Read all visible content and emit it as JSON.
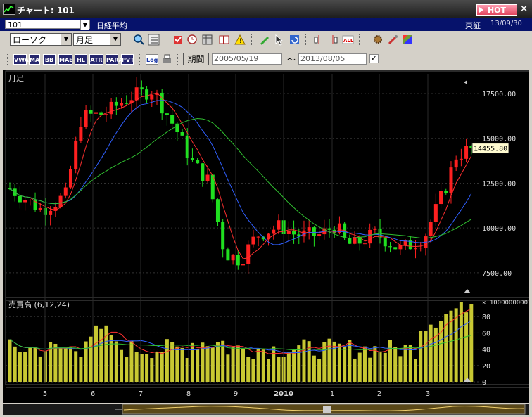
{
  "window": {
    "title": "チャート: 101",
    "hot_label": "HOT",
    "close_symbol": "✕"
  },
  "symbol_bar": {
    "code": "101",
    "name": "日経平均",
    "exchange": "東証",
    "date": "13/09/30"
  },
  "toolbar1": {
    "chart_type": "ローソク",
    "period": "月足"
  },
  "toolbar2": {
    "indicators": [
      "VWAP",
      "MA",
      "BB",
      "MAE",
      "HL",
      "ATR",
      "PARA",
      "PVT"
    ],
    "log_label": "Log",
    "period_button": "期間",
    "date_from": "2005/05/19",
    "date_to": "2013/08/05",
    "tilde": "〜",
    "check": "✓"
  },
  "chart_data": {
    "type": "candlestick",
    "price_panel": {
      "label": "月足",
      "y_ticks": [
        "17500.00",
        "15000.00",
        "12500.00",
        "10000.00",
        "7500.00"
      ],
      "last_price": "14455.80",
      "ylim": [
        6200,
        18600
      ]
    },
    "volume_panel": {
      "label": "売買高 (6,12,24)",
      "unit": "× 1000000000",
      "y_ticks": [
        "80",
        "60",
        "40",
        "20",
        "0"
      ],
      "ylim": [
        0,
        100
      ]
    },
    "x_ticks": [
      "5",
      "6",
      "7",
      "8",
      "9",
      "2010",
      "1",
      "2",
      "3"
    ],
    "colors": {
      "up": "#ff2020",
      "down": "#20e020",
      "ma_short": "#ff3030",
      "ma_mid": "#3060ff",
      "ma_long": "#30c030",
      "volume": "#c8c832",
      "last_price_bg": "#fffbd0"
    }
  }
}
